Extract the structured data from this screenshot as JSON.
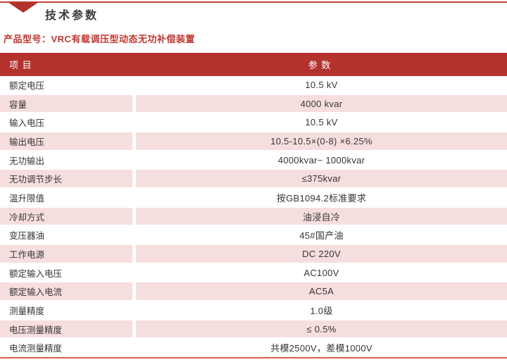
{
  "page": {
    "section_title": "技术参数",
    "product_label": "产品型号：VRC有载调压型动态无功补偿装置"
  },
  "table": {
    "headers": {
      "item": "项 目",
      "param": "参 数"
    },
    "rows": [
      {
        "item": "额定电压",
        "value": "10.5 kV"
      },
      {
        "item": "容量",
        "value": "4000 kvar"
      },
      {
        "item": "输入电压",
        "value": "10.5 kV"
      },
      {
        "item": "输出电压",
        "value": "10.5-10.5×(0-8) ×6.25%"
      },
      {
        "item": "无功输出",
        "value": "4000kvar~ 1000kvar"
      },
      {
        "item": "无功调节步长",
        "value": "≤375kvar"
      },
      {
        "item": "温升限值",
        "value": "按GB1094.2标准要求"
      },
      {
        "item": "冷却方式",
        "value": "油浸自冷"
      },
      {
        "item": "变压器油",
        "value": "45#国产油"
      },
      {
        "item": "工作电源",
        "value": "DC 220V"
      },
      {
        "item": "额定输入电压",
        "value": "AC100V"
      },
      {
        "item": "额定输入电流",
        "value": "AC5A"
      },
      {
        "item": "测量精度",
        "value": "1.0级"
      },
      {
        "item": "电压测量精度",
        "value": "≤ 0.5%"
      },
      {
        "item": "电流测量精度",
        "value": "共模2500V，差模1000V"
      }
    ]
  },
  "colors": {
    "header_red": "#b3322e",
    "row_pink": "#f7dede",
    "title_text": "#3a3a3a",
    "product_label_red": "#c2362f",
    "top_line_red": "#c4453c",
    "bottom_line_orange": "#dd5f45"
  }
}
